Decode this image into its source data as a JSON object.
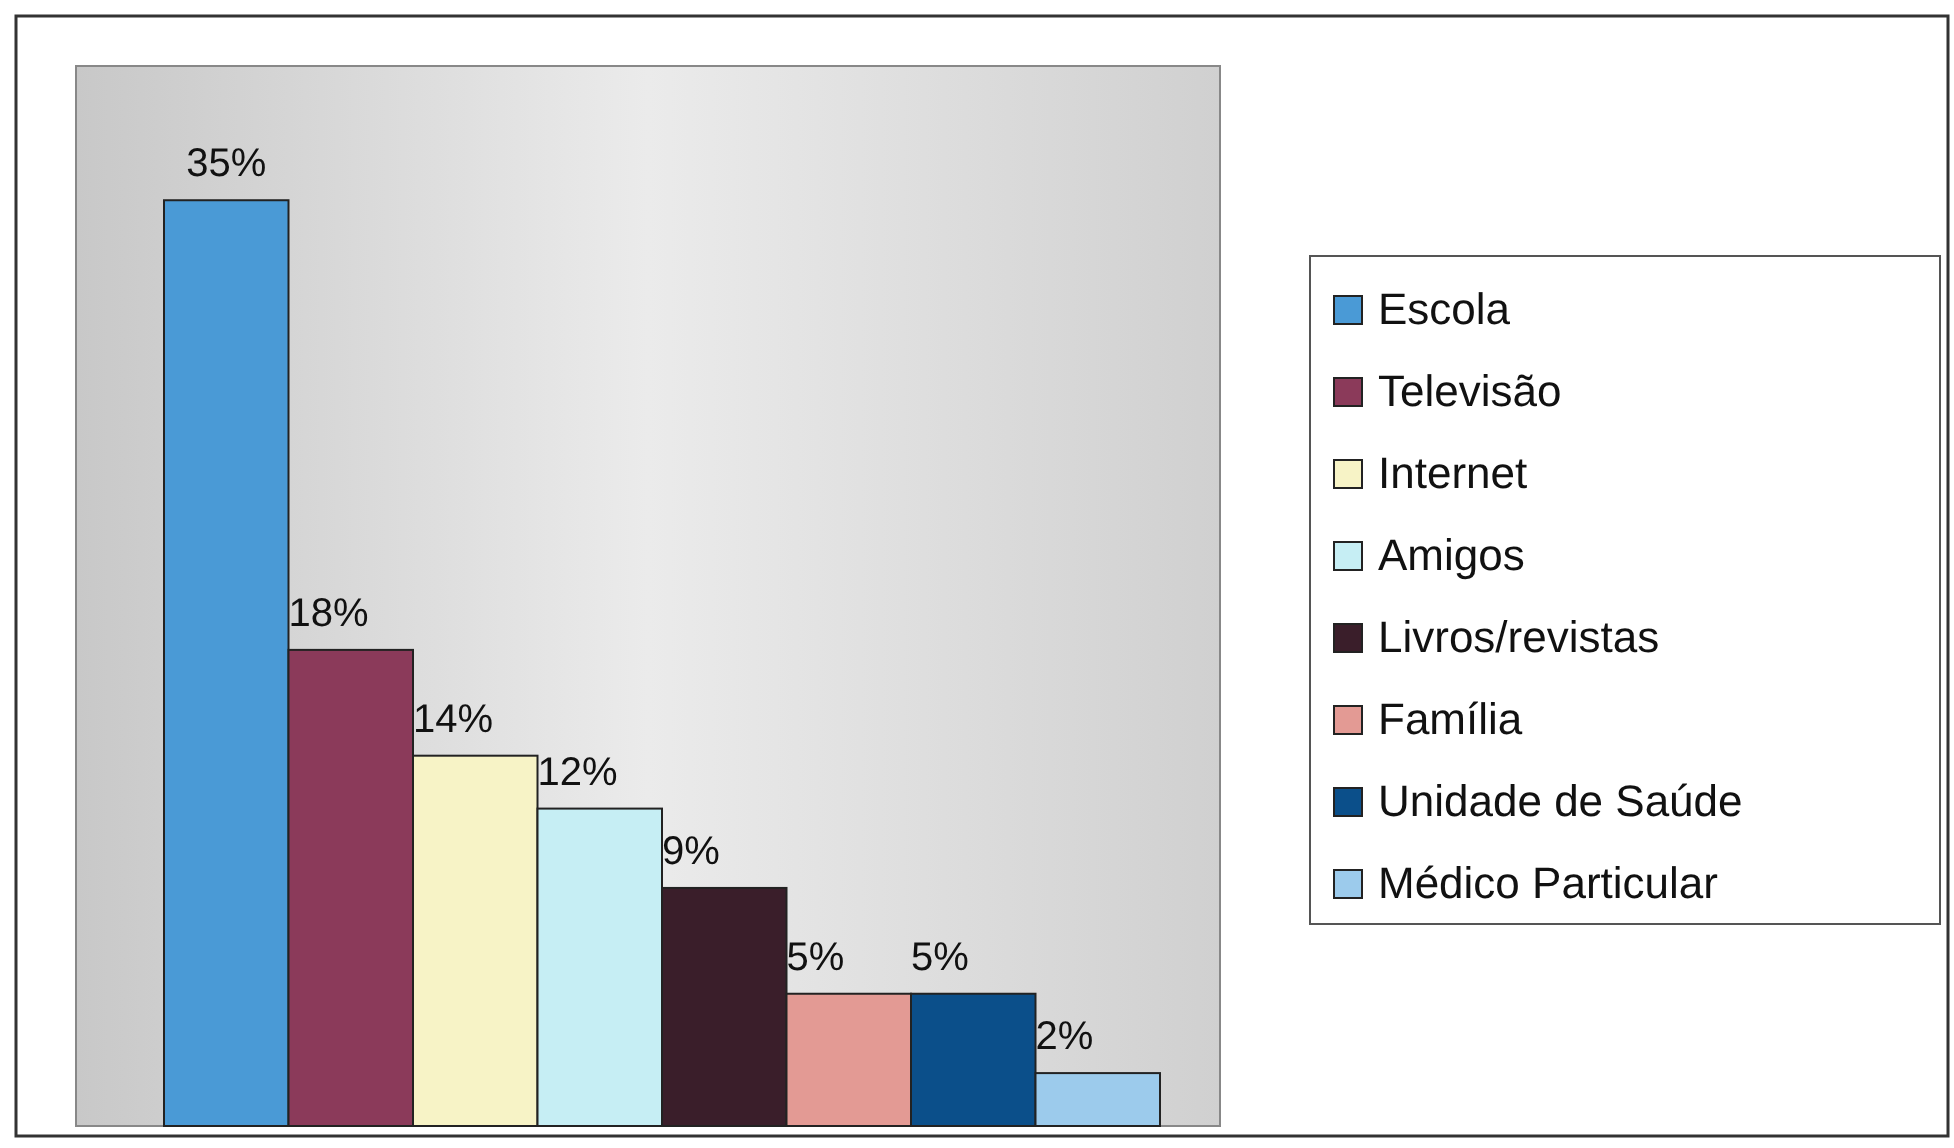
{
  "chart_data": {
    "type": "bar",
    "categories": [
      null
    ],
    "legend": "right",
    "series": [
      {
        "name": "Escola",
        "color": "#4a9ad6",
        "values": [
          35
        ],
        "value_labels": [
          "35%"
        ]
      },
      {
        "name": "Televisão",
        "color": "#8b3a5a",
        "values": [
          18
        ],
        "value_labels": [
          "18%"
        ]
      },
      {
        "name": "Internet",
        "color": "#f7f3c6",
        "values": [
          14
        ],
        "value_labels": [
          "14%"
        ]
      },
      {
        "name": "Amigos",
        "color": "#c6eef4",
        "values": [
          12
        ],
        "value_labels": [
          "12%"
        ]
      },
      {
        "name": "Livros/revistas",
        "color": "#3a1e2a",
        "values": [
          9
        ],
        "value_labels": [
          "9%"
        ]
      },
      {
        "name": "Família",
        "color": "#e39a94",
        "values": [
          5
        ],
        "value_labels": [
          "5%"
        ]
      },
      {
        "name": "Unidade de Saúde",
        "color": "#0b4f8a",
        "values": [
          5
        ],
        "value_labels": [
          "5%"
        ]
      },
      {
        "name": "Médico Particular",
        "color": "#9ccbec",
        "values": [
          2
        ],
        "value_labels": [
          "2%"
        ]
      }
    ]
  }
}
